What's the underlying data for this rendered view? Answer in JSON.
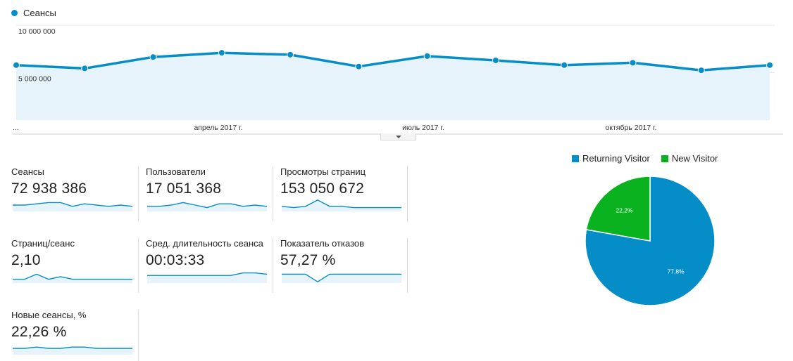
{
  "main_chart": {
    "legend_label": "Сеансы",
    "y_tick_labels": [
      "10 000 000",
      "5 000 000"
    ],
    "x_start_label": "...",
    "x_tick_labels": [
      "апрель 2017 г.",
      "июль 2017 г.",
      "октябрь 2017 г."
    ],
    "colors": {
      "line": "#058dc7",
      "area": "#e6f3fa"
    }
  },
  "metrics": [
    {
      "label": "Сеансы",
      "value": "72 938 386",
      "spark": [
        5,
        5,
        4,
        3,
        3,
        6,
        4,
        5,
        6,
        5,
        6
      ]
    },
    {
      "label": "Пользователи",
      "value": "17 051 368",
      "spark": [
        6,
        6,
        5,
        3,
        5,
        7,
        4,
        4,
        6,
        5,
        6
      ]
    },
    {
      "label": "Просмотры страниц",
      "value": "153 050 672",
      "spark": [
        6,
        7,
        6,
        1,
        6,
        6,
        7,
        7,
        7,
        7,
        7
      ]
    },
    {
      "label": "Страниц/сеанс",
      "value": "2,10",
      "spark": [
        7,
        7,
        3,
        7,
        5,
        7,
        7,
        7,
        7,
        7,
        7
      ]
    },
    {
      "label": "Сред. длительность сеанса",
      "value": "00:03:33",
      "spark": [
        4,
        4,
        4,
        4,
        4,
        4,
        4,
        4,
        2,
        2,
        3
      ]
    },
    {
      "label": "Показатель отказов",
      "value": "57,27 %",
      "spark": [
        3,
        3,
        3,
        9,
        3,
        3,
        3,
        3,
        3,
        3,
        3
      ]
    },
    {
      "label": "Новые сеансы, %",
      "value": "22,26 %",
      "spark": [
        5,
        5,
        4,
        5,
        5,
        4,
        4,
        5,
        5,
        5,
        5
      ]
    }
  ],
  "chart_data": [
    {
      "type": "area",
      "legend": [
        "Сеансы"
      ],
      "x": [
        "...",
        "",
        "",
        "апрель 2017 г.",
        "",
        "",
        "июль 2017 г.",
        "",
        "",
        "октябрь 2017 г.",
        "",
        ""
      ],
      "series": [
        {
          "name": "Сеансы",
          "values": [
            5800000,
            5450000,
            6650000,
            7100000,
            6900000,
            5650000,
            6750000,
            6300000,
            5800000,
            6050000,
            5250000,
            5800000
          ]
        }
      ],
      "ylim": [
        0,
        10000000
      ],
      "y_ticks": [
        "10 000 000",
        "5 000 000"
      ],
      "grid": true
    },
    {
      "type": "pie",
      "legend": [
        "Returning Visitor",
        "New Visitor"
      ],
      "series": [
        {
          "name": "Returning Visitor",
          "values": [
            77.8
          ],
          "label": "77,8%",
          "color": "#058dc7"
        },
        {
          "name": "New Visitor",
          "values": [
            22.2
          ],
          "label": "22,2%",
          "color": "#0bb21f"
        }
      ]
    }
  ]
}
